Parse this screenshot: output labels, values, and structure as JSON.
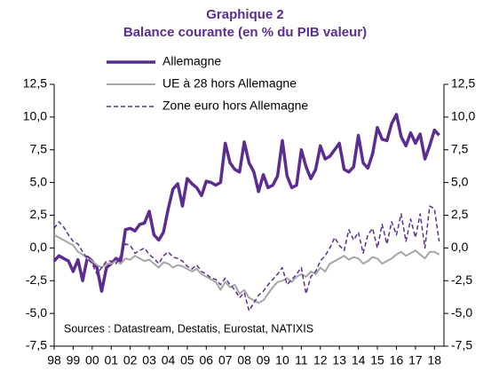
{
  "chart_data": {
    "type": "line",
    "title": "Graphique 2",
    "subtitle": "Balance courante (en % du PIB valeur)",
    "annotation": "Sources : Datastream, Destatis, Eurostat, NATIXIS",
    "title_color": "#5c2d91",
    "x": [
      1998,
      1998.25,
      1998.5,
      1998.75,
      1999,
      1999.25,
      1999.5,
      1999.75,
      2000,
      2000.25,
      2000.5,
      2000.75,
      2001,
      2001.25,
      2001.5,
      2001.75,
      2002,
      2002.25,
      2002.5,
      2002.75,
      2003,
      2003.25,
      2003.5,
      2003.75,
      2004,
      2004.25,
      2004.5,
      2004.75,
      2005,
      2005.25,
      2005.5,
      2005.75,
      2006,
      2006.25,
      2006.5,
      2006.75,
      2007,
      2007.25,
      2007.5,
      2007.75,
      2008,
      2008.25,
      2008.5,
      2008.75,
      2009,
      2009.25,
      2009.5,
      2009.75,
      2010,
      2010.25,
      2010.5,
      2010.75,
      2011,
      2011.25,
      2011.5,
      2011.75,
      2012,
      2012.25,
      2012.5,
      2012.75,
      2013,
      2013.25,
      2013.5,
      2013.75,
      2014,
      2014.25,
      2014.5,
      2014.75,
      2015,
      2015.25,
      2015.5,
      2015.75,
      2016,
      2016.25,
      2016.5,
      2016.75,
      2017,
      2017.25,
      2017.5,
      2017.75,
      2018,
      2018.25
    ],
    "series": [
      {
        "name": "Allemagne",
        "color": "#5c2d91",
        "width": 3.5,
        "dashed": false,
        "values": [
          -1.0,
          -0.6,
          -0.8,
          -1.0,
          -1.8,
          -0.9,
          -2.5,
          -0.7,
          -1.0,
          -1.5,
          -3.3,
          -1.5,
          -1.2,
          -0.8,
          -1.0,
          1.4,
          1.5,
          1.3,
          1.8,
          1.9,
          2.8,
          1.0,
          0.6,
          1.2,
          3.0,
          4.5,
          4.9,
          3.2,
          5.3,
          4.9,
          4.6,
          4.0,
          5.1,
          5.0,
          4.8,
          5.0,
          8.0,
          6.5,
          6.0,
          5.8,
          8.1,
          6.5,
          5.8,
          4.3,
          5.6,
          4.6,
          4.8,
          5.5,
          8.2,
          5.5,
          4.6,
          4.8,
          7.5,
          6.2,
          5.3,
          6.0,
          7.8,
          6.8,
          7.0,
          7.5,
          8.0,
          6.0,
          5.8,
          6.2,
          8.6,
          6.5,
          6.1,
          7.2,
          9.2,
          8.3,
          8.2,
          9.5,
          10.2,
          8.5,
          7.8,
          8.8,
          8.0,
          8.7,
          6.8,
          7.8,
          9.0,
          8.6
        ]
      },
      {
        "name": "UE à 28 hors Allemagne",
        "color": "#a6a6a6",
        "width": 2,
        "dashed": false,
        "values": [
          1.0,
          0.8,
          0.6,
          0.4,
          0.2,
          -0.3,
          -0.5,
          -0.8,
          -1.0,
          -1.3,
          -1.5,
          -1.2,
          -1.2,
          -1.0,
          -1.2,
          -0.8,
          -0.9,
          -0.6,
          -0.8,
          -1.0,
          -0.9,
          -1.2,
          -1.5,
          -1.1,
          -1.2,
          -1.5,
          -1.3,
          -1.4,
          -1.6,
          -1.8,
          -1.6,
          -2.0,
          -2.2,
          -2.4,
          -2.6,
          -3.2,
          -2.6,
          -3.0,
          -2.8,
          -3.5,
          -3.2,
          -3.8,
          -4.0,
          -4.2,
          -4.0,
          -3.5,
          -3.0,
          -2.6,
          -2.5,
          -2.3,
          -2.6,
          -2.2,
          -2.0,
          -2.2,
          -1.8,
          -2.0,
          -1.5,
          -1.8,
          -1.2,
          -1.0,
          -0.8,
          -0.6,
          -0.9,
          -0.7,
          -0.8,
          -1.2,
          -1.0,
          -0.7,
          -0.8,
          -1.2,
          -1.0,
          -0.8,
          -0.5,
          -0.3,
          -0.6,
          -0.4,
          -0.2,
          -0.5,
          -0.8,
          -0.3,
          -0.3,
          -0.5
        ]
      },
      {
        "name": "Zone euro hors Allemagne",
        "color": "#5c2d91",
        "width": 1.5,
        "dashed": true,
        "values": [
          1.5,
          2.0,
          1.6,
          1.0,
          0.5,
          0.3,
          -0.3,
          -0.8,
          -1.2,
          -2.0,
          -1.5,
          -1.0,
          -1.0,
          -1.2,
          -0.6,
          0.3,
          0.2,
          -0.4,
          -0.2,
          0.0,
          -0.5,
          -0.8,
          -1.2,
          -0.6,
          -0.3,
          -0.7,
          -0.8,
          -1.0,
          -1.4,
          -1.6,
          -1.3,
          -1.8,
          -2.0,
          -2.3,
          -2.4,
          -2.8,
          -2.3,
          -2.8,
          -3.2,
          -3.8,
          -3.4,
          -4.8,
          -4.2,
          -3.6,
          -3.3,
          -2.8,
          -2.4,
          -2.0,
          -1.5,
          -2.8,
          -2.4,
          -2.0,
          -1.5,
          -3.5,
          -2.2,
          -1.8,
          -1.0,
          -0.6,
          0.0,
          0.8,
          0.2,
          -0.2,
          1.4,
          0.6,
          1.2,
          -0.4,
          1.0,
          1.5,
          0.0,
          1.8,
          0.3,
          2.0,
          1.0,
          2.6,
          0.5,
          2.2,
          0.8,
          2.6,
          0.0,
          3.2,
          3.0,
          0.5
        ]
      }
    ],
    "xlim": [
      1998,
      2018.5
    ],
    "xticks": [
      {
        "value": 1998,
        "label": "98"
      },
      {
        "value": 1999,
        "label": "99"
      },
      {
        "value": 2000,
        "label": "00"
      },
      {
        "value": 2001,
        "label": "01"
      },
      {
        "value": 2002,
        "label": "02"
      },
      {
        "value": 2003,
        "label": "03"
      },
      {
        "value": 2004,
        "label": "04"
      },
      {
        "value": 2005,
        "label": "05"
      },
      {
        "value": 2006,
        "label": "06"
      },
      {
        "value": 2007,
        "label": "07"
      },
      {
        "value": 2008,
        "label": "08"
      },
      {
        "value": 2009,
        "label": "09"
      },
      {
        "value": 2010,
        "label": "10"
      },
      {
        "value": 2011,
        "label": "11"
      },
      {
        "value": 2012,
        "label": "12"
      },
      {
        "value": 2013,
        "label": "13"
      },
      {
        "value": 2014,
        "label": "14"
      },
      {
        "value": 2015,
        "label": "15"
      },
      {
        "value": 2016,
        "label": "16"
      },
      {
        "value": 2017,
        "label": "17"
      },
      {
        "value": 2018,
        "label": "18"
      }
    ],
    "ylim": [
      -7.5,
      12.5
    ],
    "yticks": [
      {
        "value": -7.5,
        "label": "-7,5"
      },
      {
        "value": -5,
        "label": "-5,0"
      },
      {
        "value": -2.5,
        "label": "-2,5"
      },
      {
        "value": 0,
        "label": "0,0"
      },
      {
        "value": 2.5,
        "label": "2,5"
      },
      {
        "value": 5,
        "label": "5,0"
      },
      {
        "value": 7.5,
        "label": "7,5"
      },
      {
        "value": 10,
        "label": "10,0"
      },
      {
        "value": 12.5,
        "label": "12,5"
      }
    ],
    "y2lim": [
      -7.5,
      12.5
    ],
    "y2ticks": [
      {
        "value": -7.5,
        "label": "-7,5"
      },
      {
        "value": -5,
        "label": "-5,0"
      },
      {
        "value": -2.5,
        "label": "-2,5"
      },
      {
        "value": 0,
        "label": "0,0"
      },
      {
        "value": 2.5,
        "label": "2,5"
      },
      {
        "value": 5,
        "label": "5,0"
      },
      {
        "value": 7.5,
        "label": "7,5"
      },
      {
        "value": 10,
        "label": "10,0"
      },
      {
        "value": 12.5,
        "label": "12,5"
      }
    ],
    "grid": false
  }
}
